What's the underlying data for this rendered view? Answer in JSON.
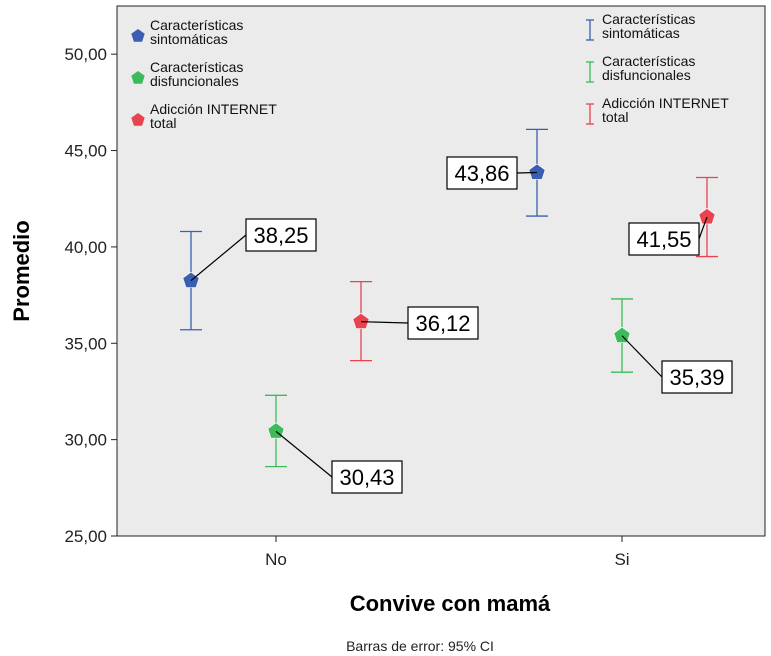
{
  "chart_data": {
    "type": "scatter",
    "xlabel": "Convive con mamá",
    "ylabel": "Promedio",
    "footnote": "Barras de error: 95% CI",
    "categories": [
      "No",
      "Si"
    ],
    "ylim": [
      25,
      52.5
    ],
    "yticks": [
      "25,00",
      "30,00",
      "35,00",
      "40,00",
      "45,00",
      "50,00"
    ],
    "ytick_values": [
      25,
      30,
      35,
      40,
      45,
      50
    ],
    "grid": false,
    "legend_position": "top",
    "series": [
      {
        "name": "Características sintomáticas",
        "name_lines": [
          "Características",
          "sintomáticas"
        ],
        "color": "#3a5fb0",
        "values": [
          38.25,
          43.86
        ],
        "ci_lower": [
          35.7,
          41.6
        ],
        "ci_upper": [
          40.8,
          46.1
        ],
        "labels": [
          "38,25",
          "43,86"
        ]
      },
      {
        "name": "Características disfuncionales",
        "name_lines": [
          "Características",
          "disfuncionales"
        ],
        "color": "#3dbb5a",
        "values": [
          30.43,
          35.39
        ],
        "ci_lower": [
          28.6,
          33.5
        ],
        "ci_upper": [
          32.3,
          37.3
        ],
        "labels": [
          "30,43",
          "35,39"
        ]
      },
      {
        "name": "Adicción INTERNET total",
        "name_lines": [
          "Adicción INTERNET",
          "total"
        ],
        "color": "#e8434f",
        "values": [
          36.12,
          41.55
        ],
        "ci_lower": [
          34.1,
          39.5
        ],
        "ci_upper": [
          38.2,
          43.6
        ],
        "labels": [
          "36,12",
          "41,55"
        ]
      }
    ]
  }
}
